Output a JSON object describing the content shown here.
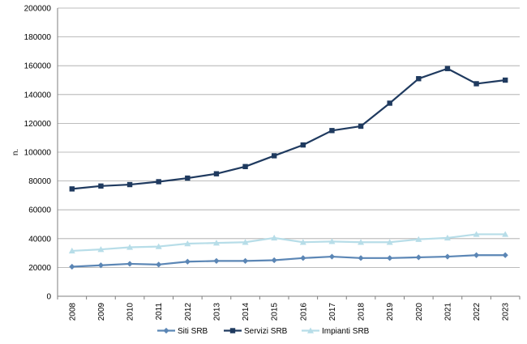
{
  "chart_data": {
    "type": "line",
    "title": "",
    "xlabel": "",
    "ylabel": "n.",
    "ylim": [
      0,
      200000
    ],
    "ytick_step": 20000,
    "grid": true,
    "legend_position": "bottom",
    "categories": [
      "2008",
      "2009",
      "2010",
      "2011",
      "2012",
      "2013",
      "2014",
      "2015",
      "2016",
      "2017",
      "2018",
      "2019",
      "2020",
      "2021",
      "2022",
      "2023"
    ],
    "series": [
      {
        "name": "Siti SRB",
        "color": "#5b86b5",
        "marker": "diamond",
        "values": [
          20500,
          21500,
          22500,
          22000,
          24000,
          24500,
          24500,
          25000,
          26500,
          27500,
          26500,
          26500,
          27000,
          27500,
          28500,
          28500
        ]
      },
      {
        "name": "Servizi SRB",
        "color": "#1f3a5f",
        "marker": "square",
        "values": [
          74500,
          76500,
          77500,
          79500,
          82000,
          85000,
          90000,
          97500,
          105000,
          115000,
          118000,
          134000,
          151000,
          158000,
          147500,
          150000
        ]
      },
      {
        "name": "Impianti SRB",
        "color": "#b7dde8",
        "marker": "triangle",
        "values": [
          31500,
          32500,
          34000,
          34500,
          36500,
          37000,
          37500,
          40500,
          37500,
          38000,
          37500,
          37500,
          39500,
          40500,
          43000,
          43000
        ]
      }
    ]
  }
}
